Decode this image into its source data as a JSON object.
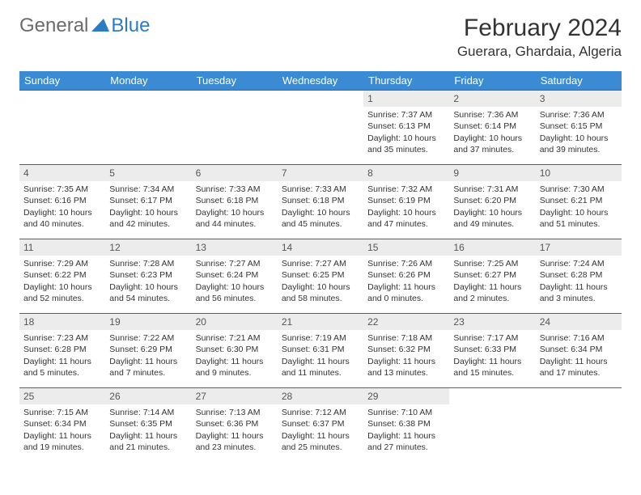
{
  "logo": {
    "general": "General",
    "blue": "Blue"
  },
  "title": "February 2024",
  "location": "Guerara, Ghardaia, Algeria",
  "colors": {
    "header_bg": "#3b8bd4",
    "header_text": "#ffffff",
    "daynum_bg": "#ececec",
    "border": "#2d6ca8",
    "logo_gray": "#6b6b6b",
    "logo_blue": "#2d7bc4"
  },
  "weekdays": [
    "Sunday",
    "Monday",
    "Tuesday",
    "Wednesday",
    "Thursday",
    "Friday",
    "Saturday"
  ],
  "weeks": [
    [
      null,
      null,
      null,
      null,
      {
        "n": "1",
        "sr": "Sunrise: 7:37 AM",
        "ss": "Sunset: 6:13 PM",
        "dl": "Daylight: 10 hours and 35 minutes."
      },
      {
        "n": "2",
        "sr": "Sunrise: 7:36 AM",
        "ss": "Sunset: 6:14 PM",
        "dl": "Daylight: 10 hours and 37 minutes."
      },
      {
        "n": "3",
        "sr": "Sunrise: 7:36 AM",
        "ss": "Sunset: 6:15 PM",
        "dl": "Daylight: 10 hours and 39 minutes."
      }
    ],
    [
      {
        "n": "4",
        "sr": "Sunrise: 7:35 AM",
        "ss": "Sunset: 6:16 PM",
        "dl": "Daylight: 10 hours and 40 minutes."
      },
      {
        "n": "5",
        "sr": "Sunrise: 7:34 AM",
        "ss": "Sunset: 6:17 PM",
        "dl": "Daylight: 10 hours and 42 minutes."
      },
      {
        "n": "6",
        "sr": "Sunrise: 7:33 AM",
        "ss": "Sunset: 6:18 PM",
        "dl": "Daylight: 10 hours and 44 minutes."
      },
      {
        "n": "7",
        "sr": "Sunrise: 7:33 AM",
        "ss": "Sunset: 6:18 PM",
        "dl": "Daylight: 10 hours and 45 minutes."
      },
      {
        "n": "8",
        "sr": "Sunrise: 7:32 AM",
        "ss": "Sunset: 6:19 PM",
        "dl": "Daylight: 10 hours and 47 minutes."
      },
      {
        "n": "9",
        "sr": "Sunrise: 7:31 AM",
        "ss": "Sunset: 6:20 PM",
        "dl": "Daylight: 10 hours and 49 minutes."
      },
      {
        "n": "10",
        "sr": "Sunrise: 7:30 AM",
        "ss": "Sunset: 6:21 PM",
        "dl": "Daylight: 10 hours and 51 minutes."
      }
    ],
    [
      {
        "n": "11",
        "sr": "Sunrise: 7:29 AM",
        "ss": "Sunset: 6:22 PM",
        "dl": "Daylight: 10 hours and 52 minutes."
      },
      {
        "n": "12",
        "sr": "Sunrise: 7:28 AM",
        "ss": "Sunset: 6:23 PM",
        "dl": "Daylight: 10 hours and 54 minutes."
      },
      {
        "n": "13",
        "sr": "Sunrise: 7:27 AM",
        "ss": "Sunset: 6:24 PM",
        "dl": "Daylight: 10 hours and 56 minutes."
      },
      {
        "n": "14",
        "sr": "Sunrise: 7:27 AM",
        "ss": "Sunset: 6:25 PM",
        "dl": "Daylight: 10 hours and 58 minutes."
      },
      {
        "n": "15",
        "sr": "Sunrise: 7:26 AM",
        "ss": "Sunset: 6:26 PM",
        "dl": "Daylight: 11 hours and 0 minutes."
      },
      {
        "n": "16",
        "sr": "Sunrise: 7:25 AM",
        "ss": "Sunset: 6:27 PM",
        "dl": "Daylight: 11 hours and 2 minutes."
      },
      {
        "n": "17",
        "sr": "Sunrise: 7:24 AM",
        "ss": "Sunset: 6:28 PM",
        "dl": "Daylight: 11 hours and 3 minutes."
      }
    ],
    [
      {
        "n": "18",
        "sr": "Sunrise: 7:23 AM",
        "ss": "Sunset: 6:28 PM",
        "dl": "Daylight: 11 hours and 5 minutes."
      },
      {
        "n": "19",
        "sr": "Sunrise: 7:22 AM",
        "ss": "Sunset: 6:29 PM",
        "dl": "Daylight: 11 hours and 7 minutes."
      },
      {
        "n": "20",
        "sr": "Sunrise: 7:21 AM",
        "ss": "Sunset: 6:30 PM",
        "dl": "Daylight: 11 hours and 9 minutes."
      },
      {
        "n": "21",
        "sr": "Sunrise: 7:19 AM",
        "ss": "Sunset: 6:31 PM",
        "dl": "Daylight: 11 hours and 11 minutes."
      },
      {
        "n": "22",
        "sr": "Sunrise: 7:18 AM",
        "ss": "Sunset: 6:32 PM",
        "dl": "Daylight: 11 hours and 13 minutes."
      },
      {
        "n": "23",
        "sr": "Sunrise: 7:17 AM",
        "ss": "Sunset: 6:33 PM",
        "dl": "Daylight: 11 hours and 15 minutes."
      },
      {
        "n": "24",
        "sr": "Sunrise: 7:16 AM",
        "ss": "Sunset: 6:34 PM",
        "dl": "Daylight: 11 hours and 17 minutes."
      }
    ],
    [
      {
        "n": "25",
        "sr": "Sunrise: 7:15 AM",
        "ss": "Sunset: 6:34 PM",
        "dl": "Daylight: 11 hours and 19 minutes."
      },
      {
        "n": "26",
        "sr": "Sunrise: 7:14 AM",
        "ss": "Sunset: 6:35 PM",
        "dl": "Daylight: 11 hours and 21 minutes."
      },
      {
        "n": "27",
        "sr": "Sunrise: 7:13 AM",
        "ss": "Sunset: 6:36 PM",
        "dl": "Daylight: 11 hours and 23 minutes."
      },
      {
        "n": "28",
        "sr": "Sunrise: 7:12 AM",
        "ss": "Sunset: 6:37 PM",
        "dl": "Daylight: 11 hours and 25 minutes."
      },
      {
        "n": "29",
        "sr": "Sunrise: 7:10 AM",
        "ss": "Sunset: 6:38 PM",
        "dl": "Daylight: 11 hours and 27 minutes."
      },
      null,
      null
    ]
  ]
}
